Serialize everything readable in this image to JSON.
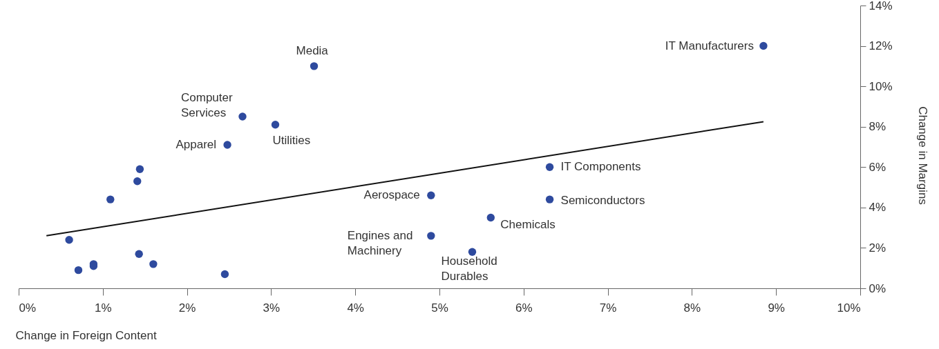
{
  "chart_data": {
    "type": "scatter",
    "xlabel": "Change in Foreign Content",
    "ylabel": "Change in Margins",
    "xlim": [
      0,
      10
    ],
    "ylim": [
      0,
      14
    ],
    "xticks": [
      {
        "value": 0,
        "label": "0%"
      },
      {
        "value": 1,
        "label": "1%"
      },
      {
        "value": 2,
        "label": "2%"
      },
      {
        "value": 3,
        "label": "3%"
      },
      {
        "value": 4,
        "label": "4%"
      },
      {
        "value": 5,
        "label": "5%"
      },
      {
        "value": 6,
        "label": "6%"
      },
      {
        "value": 7,
        "label": "7%"
      },
      {
        "value": 8,
        "label": "8%"
      },
      {
        "value": 9,
        "label": "9%"
      },
      {
        "value": 10,
        "label": "10%"
      }
    ],
    "yticks": [
      {
        "value": 0,
        "label": "0%"
      },
      {
        "value": 2,
        "label": "2%"
      },
      {
        "value": 4,
        "label": "4%"
      },
      {
        "value": 6,
        "label": "6%"
      },
      {
        "value": 8,
        "label": "8%"
      },
      {
        "value": 10,
        "label": "10%"
      },
      {
        "value": 12,
        "label": "12%"
      },
      {
        "value": 14,
        "label": "14%"
      }
    ],
    "series": [
      {
        "marker": "circle",
        "color": "#2e4a9e",
        "x": [
          8.85,
          3.51,
          2.66,
          3.05,
          2.48,
          6.31,
          6.31,
          4.9,
          5.61,
          4.9,
          5.39,
          1.44,
          1.41,
          1.09,
          0.6,
          0.71,
          0.89,
          0.89,
          1.43,
          1.6,
          2.45
        ],
        "values": [
          12.0,
          11.0,
          8.5,
          8.1,
          7.1,
          6.0,
          4.4,
          4.6,
          3.5,
          2.6,
          1.8,
          5.9,
          5.3,
          4.4,
          2.4,
          0.9,
          1.2,
          1.1,
          1.7,
          1.2,
          0.7
        ],
        "value_labels": [
          "IT Manufacturers",
          "Media",
          "Computer\nServices",
          "Utilities",
          "Apparel",
          "IT Components",
          "Semiconductors",
          "Aerospace",
          "Chemicals",
          "Engines and\nMachinery",
          "Household\nDurables",
          null,
          null,
          null,
          null,
          null,
          null,
          null,
          null,
          null,
          null
        ]
      },
      {
        "type": "line",
        "color": "#111111",
        "x": [
          0.33,
          8.85
        ],
        "values": [
          2.6,
          8.25
        ]
      }
    ]
  }
}
